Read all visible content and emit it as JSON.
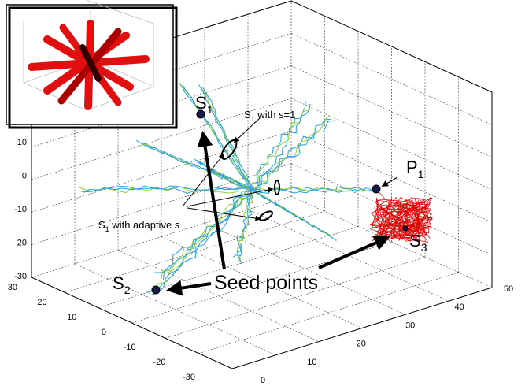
{
  "axes": {
    "z_ticks": [
      10,
      0,
      -10,
      -20,
      -30
    ],
    "y_ticks": [
      30,
      20,
      10,
      0,
      -10,
      -20,
      -30
    ],
    "x_ticks": [
      0,
      10,
      20,
      30,
      40,
      50
    ]
  },
  "labels": {
    "s1": {
      "main": "S",
      "sub": "1"
    },
    "s2": {
      "main": "S",
      "sub": "2"
    },
    "s3": {
      "main": "S",
      "sub": "3"
    },
    "p1": {
      "main": "P",
      "sub": "1"
    }
  },
  "annotations": {
    "s_fixed": {
      "main": "S",
      "sub": "1",
      "rest": " with s=1"
    },
    "s_adaptive": {
      "main": "S",
      "sub": "1",
      "rest": " with adaptive ",
      "italic": "s"
    },
    "seed": "Seed points"
  }
}
